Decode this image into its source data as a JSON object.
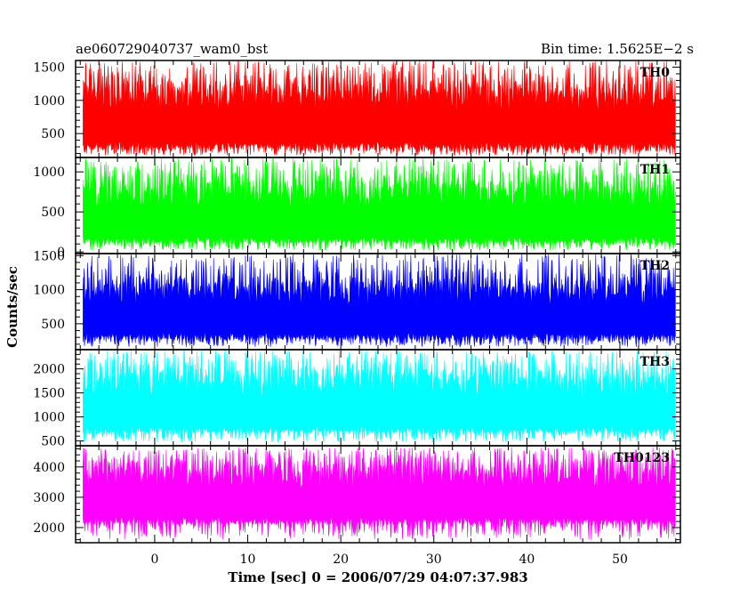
{
  "header": {
    "title": "ae060729040737_wam0_bst",
    "bin_time": "Bin time: 1.5625E−2 s"
  },
  "axes": {
    "xlabel": "Time [sec] 0 = 2006/07/29 04:07:37.983",
    "ylabel": "Counts/sec"
  },
  "chart_data": {
    "type": "line",
    "title": "ae060729040737_wam0_bst",
    "xlabel": "Time [sec] 0 = 2006/07/29 04:07:37.983",
    "ylabel": "Counts/sec",
    "xlim": [
      -8.5,
      56.5
    ],
    "data_x_range": [
      -7.7,
      56.0
    ],
    "bin_time_s": 0.015625,
    "xticks": [
      0,
      10,
      20,
      30,
      40,
      50
    ],
    "panels": [
      {
        "name": "TH0",
        "color": "#ff0000",
        "ylim": [
          140,
          1600
        ],
        "yticks": [
          500,
          1000,
          1500
        ],
        "typical_low": 250,
        "typical_high": 1300,
        "min_spike": 170,
        "max_spike": 1600
      },
      {
        "name": "TH1",
        "color": "#00ff00",
        "ylim": [
          -20,
          1180
        ],
        "yticks": [
          0,
          500,
          1000
        ],
        "typical_low": 100,
        "typical_high": 900,
        "min_spike": 20,
        "max_spike": 1180
      },
      {
        "name": "TH2",
        "color": "#0000ff",
        "ylim": [
          120,
          1530
        ],
        "yticks": [
          500,
          1000,
          1500
        ],
        "typical_low": 260,
        "typical_high": 1180,
        "min_spike": 160,
        "max_spike": 1530
      },
      {
        "name": "TH3",
        "color": "#00ffff",
        "ylim": [
          400,
          2400
        ],
        "yticks": [
          500,
          1000,
          1500,
          2000
        ],
        "typical_low": 650,
        "typical_high": 2000,
        "min_spike": 470,
        "max_spike": 2400
      },
      {
        "name": "TH0123",
        "color": "#ff00ff",
        "ylim": [
          1500,
          4700
        ],
        "yticks": [
          2000,
          3000,
          4000
        ],
        "typical_low": 2100,
        "typical_high": 4200,
        "min_spike": 1600,
        "max_spike": 4650
      }
    ]
  }
}
